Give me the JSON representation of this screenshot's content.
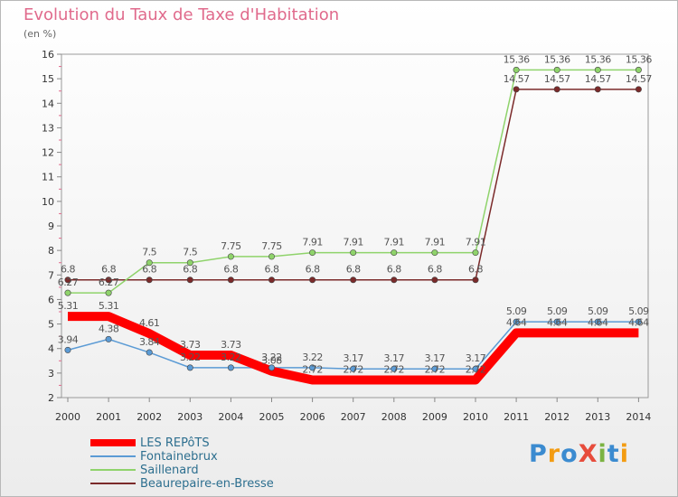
{
  "chart_data": {
    "type": "line",
    "title": "Evolution du Taux de Taxe d'Habitation",
    "subtitle": "(en %)",
    "xlabel": "",
    "ylabel": "",
    "ylim": [
      2,
      16
    ],
    "yticks": [
      2,
      3,
      4,
      5,
      6,
      7,
      8,
      9,
      10,
      11,
      12,
      13,
      14,
      15,
      16
    ],
    "grid": false,
    "legend_position": "bottom-left",
    "x": [
      "2000",
      "2001",
      "2002",
      "2003",
      "2004",
      "2005",
      "2006",
      "2007",
      "2008",
      "2009",
      "2010",
      "2011",
      "2012",
      "2013",
      "2014"
    ],
    "series": [
      {
        "name": "LES REPôTS",
        "color": "#ff0000",
        "values": [
          5.31,
          5.31,
          4.61,
          3.73,
          3.73,
          3.08,
          2.72,
          2.72,
          2.72,
          2.72,
          2.72,
          4.64,
          4.64,
          4.64,
          4.64
        ],
        "labels": [
          "5.31",
          "5.31",
          "4.61",
          "3.73",
          "3.73",
          "3.08",
          "2.72",
          "2.72",
          "2.72",
          "2.72",
          "2.72",
          "4.64",
          "4.64",
          "4.64",
          "4.64"
        ]
      },
      {
        "name": "Fontainebrux",
        "color": "#5b9bd5",
        "values": [
          3.94,
          4.38,
          3.84,
          3.22,
          3.22,
          3.22,
          3.22,
          3.17,
          3.17,
          3.17,
          3.17,
          5.09,
          5.09,
          5.09,
          5.09
        ],
        "labels": [
          "3.94",
          "4.38",
          "3.84",
          "3.22",
          "3.22",
          "3.22",
          "3.22",
          "3.17",
          "3.17",
          "3.17",
          "3.17",
          "5.09",
          "5.09",
          "5.09",
          "5.09"
        ]
      },
      {
        "name": "Saillenard",
        "color": "#8fd36b",
        "values": [
          6.27,
          6.27,
          7.5,
          7.5,
          7.75,
          7.75,
          7.91,
          7.91,
          7.91,
          7.91,
          7.91,
          15.36,
          15.36,
          15.36,
          15.36
        ],
        "labels": [
          "6.27",
          "6.27",
          "7.5",
          "7.5",
          "7.75",
          "7.75",
          "7.91",
          "7.91",
          "7.91",
          "7.91",
          "7.91",
          "15.36",
          "15.36",
          "15.36",
          "15.36"
        ]
      },
      {
        "name": "Beaurepaire-en-Bresse",
        "color": "#7b2a2a",
        "values": [
          6.8,
          6.8,
          6.8,
          6.8,
          6.8,
          6.8,
          6.8,
          6.8,
          6.8,
          6.8,
          6.8,
          14.57,
          14.57,
          14.57,
          14.57
        ],
        "labels": [
          "6.8",
          "6.8",
          "6.8",
          "6.8",
          "6.8",
          "6.8",
          "6.8",
          "6.8",
          "6.8",
          "6.8",
          "6.8",
          "14.57",
          "14.57",
          "14.57",
          "14.57"
        ]
      }
    ]
  },
  "branding": {
    "logo_text": "ProXiti",
    "logo_colors": [
      "#3b8bd0",
      "#f39c12",
      "#3b8bd0",
      "#e74c3c",
      "#7cb342",
      "#3b8bd0",
      "#f39c12"
    ]
  }
}
